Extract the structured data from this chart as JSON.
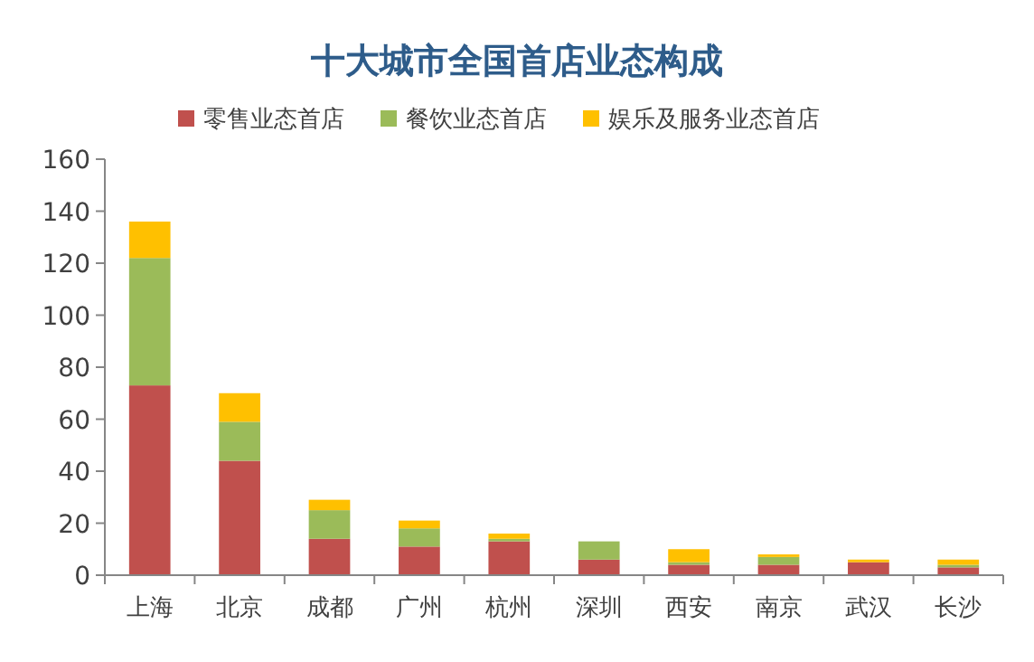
{
  "chart_data": {
    "type": "bar",
    "title": "十大城市全国首店业态构成",
    "categories": [
      "上海",
      "北京",
      "成都",
      "广州",
      "杭州",
      "深圳",
      "西安",
      "南京",
      "武汉",
      "长沙"
    ],
    "series": [
      {
        "name": "零售业态首店",
        "color": "#c0504d",
        "values": [
          73,
          44,
          14,
          11,
          13,
          6,
          4,
          4,
          5,
          3
        ]
      },
      {
        "name": "餐饮业态首店",
        "color": "#9bbb59",
        "values": [
          49,
          15,
          11,
          7,
          1,
          7,
          1,
          3,
          0,
          1
        ]
      },
      {
        "name": "娱乐及服务业态首店",
        "color": "#ffc000",
        "values": [
          14,
          11,
          4,
          3,
          2,
          0,
          5,
          1,
          1,
          2
        ]
      }
    ],
    "stacked": true,
    "ylim": [
      0,
      160
    ],
    "yticks": [
      0,
      20,
      40,
      60,
      80,
      100,
      120,
      140,
      160
    ],
    "grid": false,
    "legend": "top"
  }
}
